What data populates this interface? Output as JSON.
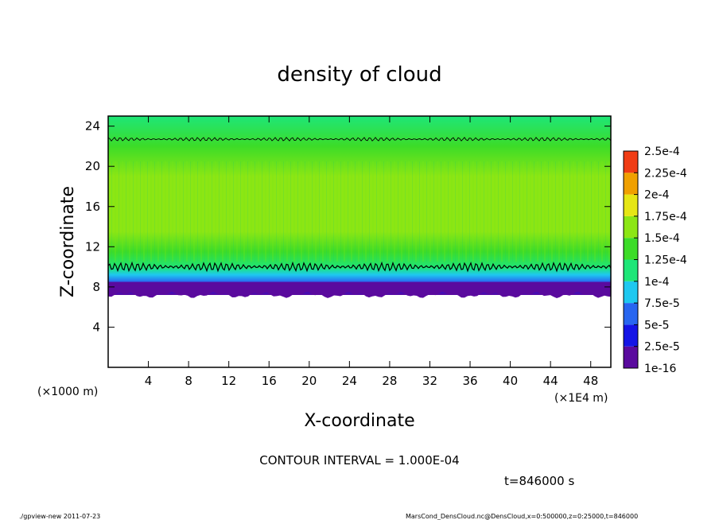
{
  "chart_data": {
    "type": "heatmap",
    "title": "density of cloud",
    "xlabel": "X-coordinate",
    "ylabel": "Z-coordinate",
    "x_unit_left": "(×1000 m)",
    "x_unit_right": "(×1E4 m)",
    "xlim": [
      0,
      50
    ],
    "ylim": [
      0,
      25
    ],
    "xticks": [
      4,
      8,
      12,
      16,
      20,
      24,
      28,
      32,
      36,
      40,
      44,
      48
    ],
    "yticks": [
      4,
      8,
      12,
      16,
      20,
      24
    ],
    "contour_interval": "CONTOUR INTERVAL = 1.000E-04",
    "time_label": "t=846000 s",
    "colorbar": {
      "labels": [
        "1e-16",
        "2.5e-5",
        "5e-5",
        "7.5e-5",
        "1e-4",
        "1.25e-4",
        "1.5e-4",
        "1.75e-4",
        "2e-4",
        "2.25e-4",
        "2.5e-4"
      ],
      "colors": [
        "#5a0a9e",
        "#1414e6",
        "#2866f0",
        "#1ec8f0",
        "#1ee678",
        "#3cdc28",
        "#8ce614",
        "#e6e614",
        "#f0a000",
        "#f03c14",
        "#f08c8c"
      ]
    },
    "profile": [
      {
        "z": 7.2,
        "value": "1e-16"
      },
      {
        "z": 7.8,
        "value": "2.5e-5"
      },
      {
        "z": 8.5,
        "value": "5e-5"
      },
      {
        "z": 9.2,
        "value": "7.5e-5"
      },
      {
        "z": 9.9,
        "value": "1e-4"
      },
      {
        "z": 11.5,
        "value": "1.25e-4"
      },
      {
        "z": 13.5,
        "value": "1.5e-4"
      },
      {
        "z": 19.0,
        "value": "1.5e-4"
      },
      {
        "z": 22.0,
        "value": "1.25e-4"
      },
      {
        "z": 25.0,
        "value": "1e-4"
      }
    ],
    "contour_levels_z": [
      10.0,
      22.7
    ],
    "cloud_base_z": 7.2,
    "grid": false,
    "legend": "right colorbar"
  },
  "footer": {
    "left": "./gpview-new   2011-07-23",
    "right": "MarsCond_DensCloud.nc@DensCloud,x=0:500000,z=0:25000,t=846000"
  }
}
